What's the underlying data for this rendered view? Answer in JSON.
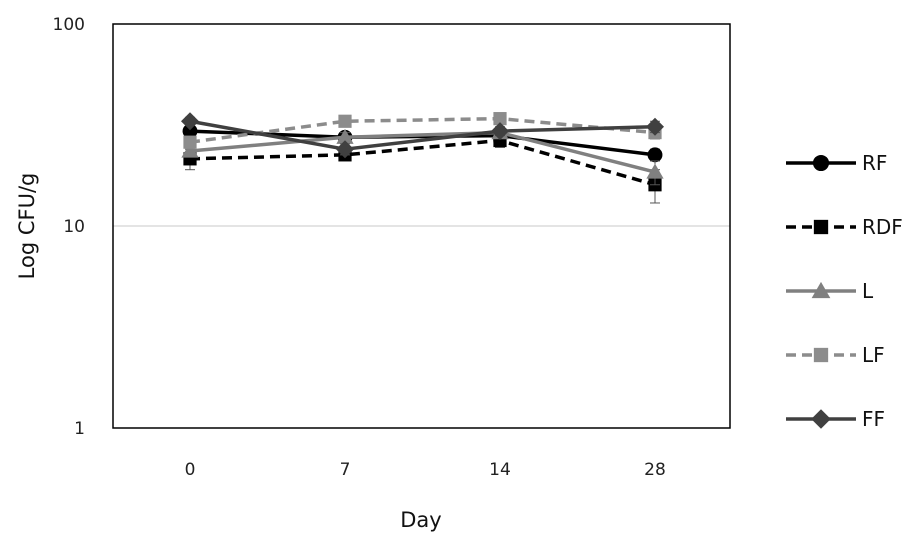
{
  "chart_data": {
    "type": "line",
    "title": "",
    "xlabel": "Day",
    "ylabel": "Log CFU/g",
    "y_scale": "log",
    "ylim": [
      1,
      100
    ],
    "y_ticks": [
      "1",
      "10",
      "100"
    ],
    "categories": [
      "0",
      "7",
      "14",
      "28"
    ],
    "gridlines": "horizontal at 10",
    "legend_position": "right",
    "series": [
      {
        "name": "RF",
        "values": [
          29.5,
          27.5,
          28.0,
          22.5
        ],
        "errors": [
          1.5,
          1.5,
          1.5,
          1.5
        ],
        "color": "#000000",
        "dash": "solid",
        "marker": "circle"
      },
      {
        "name": "RDF",
        "values": [
          21.5,
          22.5,
          26.5,
          16.0
        ],
        "errors": [
          2.5,
          1.0,
          2.0,
          3.0
        ],
        "color": "#000000",
        "dash": "dashed",
        "marker": "square"
      },
      {
        "name": "L",
        "values": [
          23.5,
          27.5,
          29.0,
          18.5
        ],
        "errors": [
          1.5,
          1.5,
          1.5,
          2.5
        ],
        "color": "#808080",
        "dash": "solid",
        "marker": "triangle"
      },
      {
        "name": "LF",
        "values": [
          26.0,
          33.0,
          34.0,
          29.0
        ],
        "errors": [
          1.5,
          1.5,
          1.5,
          2.0
        ],
        "color": "#8c8c8c",
        "dash": "dashed",
        "marker": "square"
      },
      {
        "name": "FF",
        "values": [
          33.0,
          24.0,
          29.5,
          31.0
        ],
        "errors": [
          1.5,
          1.5,
          1.5,
          2.0
        ],
        "color": "#404040",
        "dash": "solid",
        "marker": "diamond"
      }
    ]
  }
}
